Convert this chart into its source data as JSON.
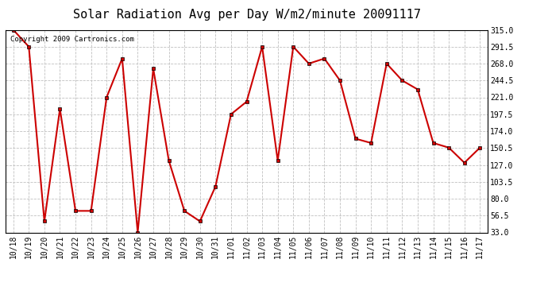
{
  "title": "Solar Radiation Avg per Day W/m2/minute 20091117",
  "copyright": "Copyright 2009 Cartronics.com",
  "labels": [
    "10/18",
    "10/19",
    "10/20",
    "10/21",
    "10/22",
    "10/23",
    "10/24",
    "10/25",
    "10/26",
    "10/27",
    "10/28",
    "10/29",
    "10/30",
    "10/31",
    "11/01",
    "11/02",
    "11/03",
    "11/04",
    "11/05",
    "11/06",
    "11/07",
    "11/08",
    "11/09",
    "11/10",
    "11/11",
    "11/12",
    "11/13",
    "11/14",
    "11/15",
    "11/16",
    "11/17"
  ],
  "values": [
    315.0,
    291.5,
    48.5,
    205.0,
    63.0,
    63.0,
    221.0,
    275.0,
    33.0,
    261.0,
    133.0,
    63.0,
    48.5,
    97.0,
    197.5,
    215.0,
    291.5,
    133.0,
    291.5,
    268.0,
    275.0,
    244.5,
    163.5,
    157.5,
    268.0,
    244.5,
    232.0,
    157.5,
    151.0,
    130.0,
    151.0
  ],
  "ylim": [
    33.0,
    315.0
  ],
  "yticks": [
    33.0,
    56.5,
    80.0,
    103.5,
    127.0,
    150.5,
    174.0,
    197.5,
    221.0,
    244.5,
    268.0,
    291.5,
    315.0
  ],
  "line_color": "#cc0000",
  "marker": "s",
  "marker_size": 3,
  "bg_color": "#ffffff",
  "grid_color": "#c0c0c0",
  "title_fontsize": 11,
  "tick_fontsize": 7,
  "copyright_fontsize": 6.5
}
